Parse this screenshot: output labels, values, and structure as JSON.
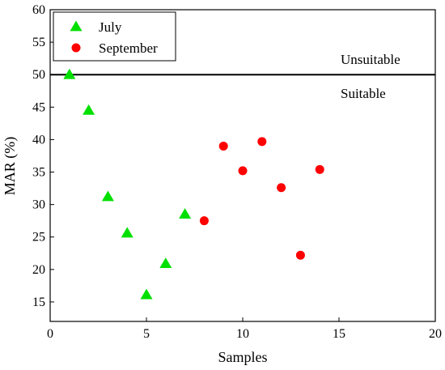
{
  "chart_data": {
    "type": "scatter",
    "xlabel": "Samples",
    "ylabel": "MAR (%)",
    "xlim": [
      0,
      20
    ],
    "ylim": [
      12,
      60
    ],
    "xticks": [
      0,
      5,
      10,
      15,
      20
    ],
    "yticks": [
      15,
      20,
      25,
      30,
      35,
      40,
      45,
      50,
      55,
      60
    ],
    "grid": false,
    "legend_position": "top-left",
    "series": [
      {
        "name": "July",
        "marker": "triangle",
        "color": "#00e000",
        "points": [
          [
            1,
            50.0
          ],
          [
            2,
            44.5
          ],
          [
            3,
            31.2
          ],
          [
            4,
            25.6
          ],
          [
            5,
            16.1
          ],
          [
            6,
            20.9
          ],
          [
            7,
            28.5
          ]
        ]
      },
      {
        "name": "September",
        "marker": "circle",
        "color": "#ff0000",
        "points": [
          [
            8,
            27.5
          ],
          [
            9,
            39.0
          ],
          [
            10,
            35.2
          ],
          [
            11,
            39.7
          ],
          [
            12,
            32.6
          ],
          [
            13,
            22.2
          ],
          [
            14,
            35.4
          ]
        ]
      }
    ],
    "threshold": {
      "y": 50,
      "above_label": "Unsuitable",
      "below_label": "Suitable"
    }
  }
}
